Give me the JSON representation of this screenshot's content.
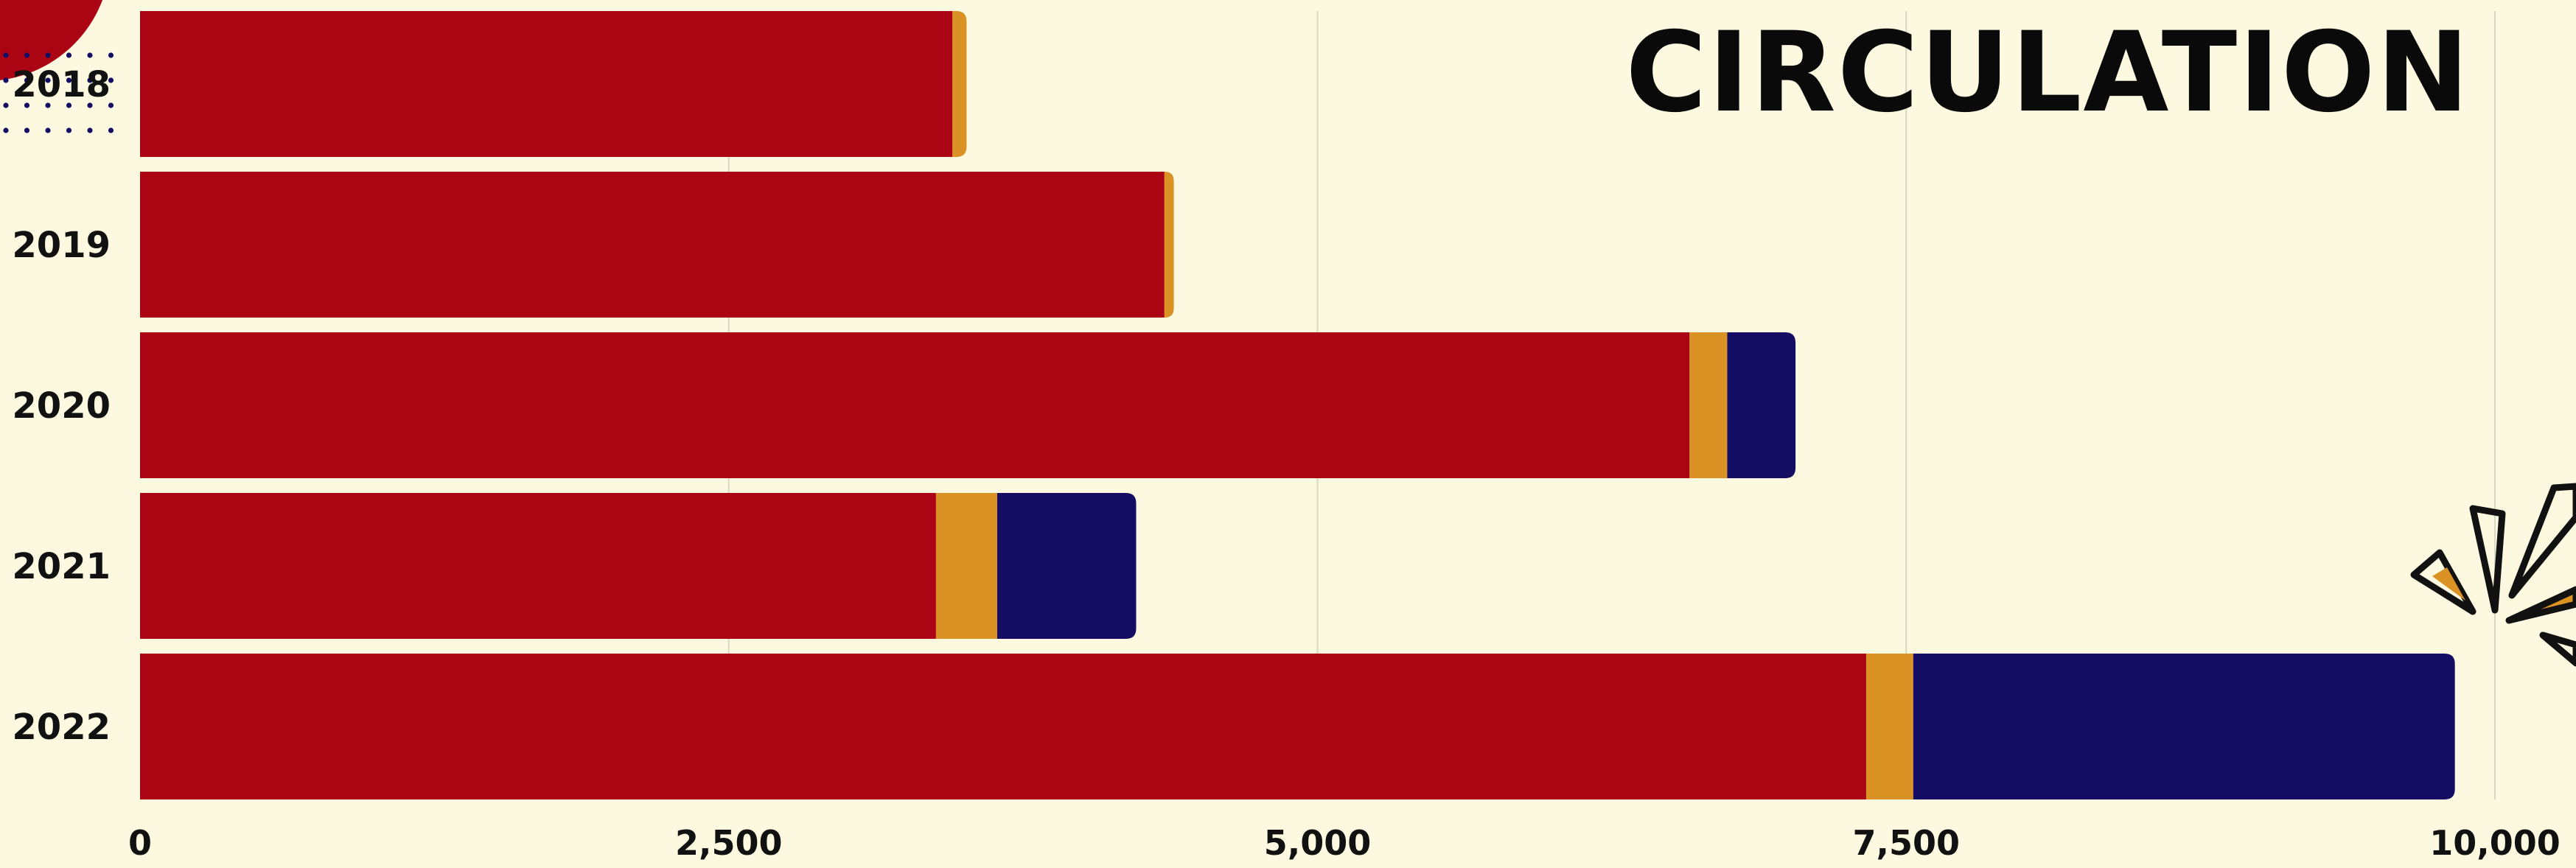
{
  "chart_data": {
    "type": "bar",
    "orientation": "horizontal",
    "stacked": true,
    "title": "CIRCULATION",
    "categories": [
      "2018",
      "2019",
      "2020",
      "2021",
      "2022"
    ],
    "series": [
      {
        "color": "#ab0413",
        "values": [
          3450,
          4350,
          6580,
          3380,
          7330
        ]
      },
      {
        "color": "#db9224",
        "values": [
          60,
          40,
          160,
          260,
          200
        ]
      },
      {
        "color": "#130e63",
        "values": [
          0,
          0,
          290,
          590,
          2300
        ]
      }
    ],
    "xlim": [
      0,
      10000
    ],
    "xticks": [
      "0",
      "2,500",
      "5,000",
      "7,500",
      "10,000"
    ],
    "xtick_values": [
      0,
      2500,
      5000,
      7500,
      10000
    ],
    "grid": true,
    "legend": "none"
  },
  "colors": {
    "background": "#fdf9e0",
    "grid": "#d9d6c3",
    "decor_red": "#ab0413",
    "decor_navy": "#130e63",
    "decor_orange": "#db9224",
    "decor_black": "#111111"
  },
  "decorations": [
    "red-circle-corner",
    "dot-grid",
    "starburst-icon"
  ]
}
